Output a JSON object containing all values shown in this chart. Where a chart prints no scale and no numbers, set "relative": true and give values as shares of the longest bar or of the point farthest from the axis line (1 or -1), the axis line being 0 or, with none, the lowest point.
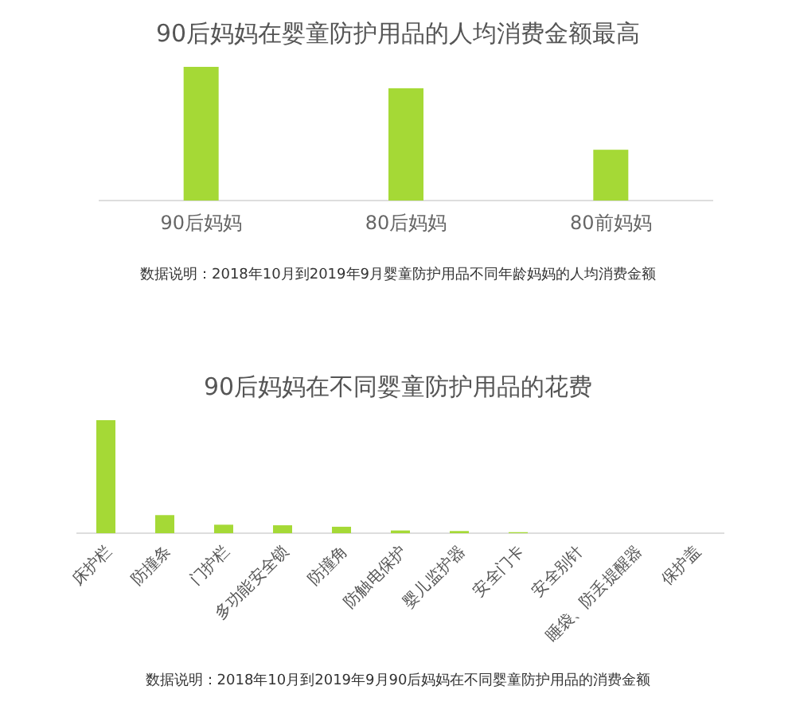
{
  "chart_data": [
    {
      "type": "bar",
      "title": "90后妈妈在婴童防护用品的人均消费金额最高",
      "categories": [
        "90后妈妈",
        "80后妈妈",
        "80前妈妈"
      ],
      "values": [
        1,
        0.84,
        0.38
      ],
      "relative": true,
      "color": "#a5d936",
      "annotations": [
        "数据说明：2018年10月到2019年9月婴童防护用品不同年龄妈妈的人均消费金额"
      ]
    },
    {
      "type": "bar",
      "title": "90后妈妈在不同婴童防护用品的花费",
      "categories": [
        "床护栏",
        "防撞条",
        "门护栏",
        "多功能安全锁",
        "防撞角",
        "防触电保护",
        "婴儿监护器",
        "安全门卡",
        "安全别针",
        "睡袋、防丢提醒器",
        "保护盖"
      ],
      "values": [
        1,
        0.16,
        0.075,
        0.07,
        0.057,
        0.024,
        0.019,
        0.009,
        0,
        0,
        0
      ],
      "relative": true,
      "color": "#a5d936",
      "annotations": [
        "数据说明：2018年10月到2019年9月90后妈妈在不同婴童防护用品的消费金额"
      ]
    }
  ]
}
